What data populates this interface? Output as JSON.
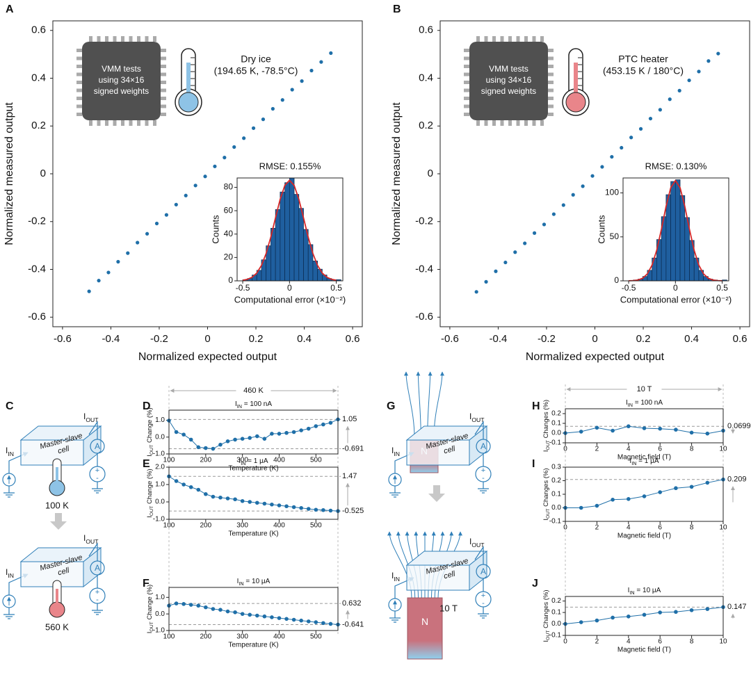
{
  "chart_data": [
    {
      "panel": "A",
      "type": "scatter",
      "xlabel": "Normalized expected output",
      "ylabel": "Normalized measured output",
      "x": [
        -0.49,
        -0.45,
        -0.41,
        -0.37,
        -0.33,
        -0.29,
        -0.25,
        -0.21,
        -0.17,
        -0.13,
        -0.09,
        -0.05,
        -0.01,
        0.03,
        0.07,
        0.11,
        0.15,
        0.19,
        0.23,
        0.27,
        0.31,
        0.35,
        0.39,
        0.43,
        0.47,
        0.51
      ],
      "values": [
        -0.492,
        -0.447,
        -0.413,
        -0.368,
        -0.332,
        -0.288,
        -0.251,
        -0.208,
        -0.172,
        -0.129,
        -0.091,
        -0.049,
        -0.011,
        0.031,
        0.068,
        0.112,
        0.149,
        0.191,
        0.228,
        0.272,
        0.309,
        0.352,
        0.388,
        0.432,
        0.468,
        0.505
      ],
      "color": "#1f6fa8",
      "xlim": [
        -0.64,
        0.64
      ],
      "ylim": [
        -0.64,
        0.64
      ],
      "xticks": [
        -0.6,
        -0.4,
        -0.2,
        0,
        0.2,
        0.4,
        0.6
      ],
      "yticks": [
        -0.6,
        -0.4,
        -0.2,
        0,
        0.2,
        0.4,
        0.6
      ],
      "chip_text": [
        "VMM tests",
        "using 34×16",
        "signed weights"
      ],
      "condition": [
        "Dry ice",
        "(194.65 K, -78.5°C)"
      ]
    },
    {
      "type": "histogram",
      "title": "RMSE: 0.155%",
      "xlabel": "Computational error (×10⁻²)",
      "ylabel": "Counts",
      "bins": [
        -0.5,
        -0.45,
        -0.4,
        -0.35,
        -0.3,
        -0.25,
        -0.2,
        -0.15,
        -0.1,
        -0.05,
        0,
        0.05,
        0.1,
        0.15,
        0.2,
        0.25,
        0.3,
        0.35,
        0.4,
        0.45,
        0.5,
        0.55
      ],
      "values": [
        1,
        2,
        5,
        9,
        18,
        30,
        45,
        61,
        76,
        84,
        88,
        74,
        62,
        44,
        31,
        17,
        10,
        5,
        2,
        1,
        1
      ],
      "color": "#1f5f9f",
      "fit": {
        "x": [
          -0.5,
          -0.45,
          -0.4,
          -0.35,
          -0.3,
          -0.25,
          -0.2,
          -0.15,
          -0.1,
          -0.05,
          0,
          0.05,
          0.1,
          0.15,
          0.2,
          0.25,
          0.3,
          0.35,
          0.4,
          0.45,
          0.5
        ],
        "values": [
          0.5,
          1.3,
          3.1,
          6.7,
          13.2,
          23.4,
          37.4,
          53.8,
          69.8,
          81.6,
          86,
          81.6,
          69.8,
          53.8,
          37.4,
          23.4,
          13.2,
          6.7,
          3.1,
          1.3,
          0.5
        ],
        "color": "#d62728"
      },
      "xlim": [
        -0.56,
        0.57
      ],
      "ylim": [
        0,
        88
      ],
      "xticks": [
        -0.5,
        0,
        0.5
      ],
      "yticks": [
        0,
        20,
        40,
        60,
        80
      ]
    },
    {
      "panel": "B",
      "type": "scatter",
      "xlabel": "Normalized expected output",
      "ylabel": "Normalized measured output",
      "x": [
        -0.49,
        -0.45,
        -0.41,
        -0.37,
        -0.33,
        -0.29,
        -0.25,
        -0.21,
        -0.17,
        -0.13,
        -0.09,
        -0.05,
        -0.01,
        0.03,
        0.07,
        0.11,
        0.15,
        0.19,
        0.23,
        0.27,
        0.31,
        0.35,
        0.39,
        0.43,
        0.47,
        0.51
      ],
      "values": [
        -0.494,
        -0.452,
        -0.408,
        -0.371,
        -0.328,
        -0.291,
        -0.248,
        -0.212,
        -0.169,
        -0.131,
        -0.088,
        -0.052,
        -0.009,
        0.029,
        0.071,
        0.109,
        0.152,
        0.188,
        0.231,
        0.268,
        0.312,
        0.348,
        0.391,
        0.428,
        0.472,
        0.503
      ],
      "color": "#1f6fa8",
      "xlim": [
        -0.64,
        0.64
      ],
      "ylim": [
        -0.64,
        0.64
      ],
      "xticks": [
        -0.6,
        -0.4,
        -0.2,
        0,
        0.2,
        0.4,
        0.6
      ],
      "yticks": [
        -0.6,
        -0.4,
        -0.2,
        0,
        0.2,
        0.4,
        0.6
      ],
      "chip_text": [
        "VMM tests",
        "using 34×16",
        "signed weights"
      ],
      "condition": [
        "PTC heater",
        "(453.15 K / 180°C)"
      ]
    },
    {
      "type": "histogram",
      "title": "RMSE: 0.130%",
      "xlabel": "Computational error (×10⁻²)",
      "ylabel": "Counts",
      "bins": [
        -0.5,
        -0.45,
        -0.4,
        -0.35,
        -0.3,
        -0.25,
        -0.2,
        -0.15,
        -0.1,
        -0.05,
        0,
        0.05,
        0.1,
        0.15,
        0.2,
        0.25,
        0.3,
        0.35,
        0.4,
        0.45,
        0.5,
        0.55
      ],
      "values": [
        0,
        1,
        2,
        5,
        12,
        26,
        47,
        73,
        98,
        113,
        115,
        97,
        72,
        46,
        26,
        12,
        5,
        2,
        1,
        0,
        1
      ],
      "color": "#1f5f9f",
      "fit": {
        "x": [
          -0.5,
          -0.45,
          -0.4,
          -0.35,
          -0.3,
          -0.25,
          -0.2,
          -0.15,
          -0.1,
          -0.05,
          0,
          0.05,
          0.1,
          0.15,
          0.2,
          0.25,
          0.3,
          0.35,
          0.4,
          0.45,
          0.5
        ],
        "values": [
          0.1,
          0.3,
          1.0,
          3.0,
          8.0,
          17.9,
          34.9,
          58.6,
          84.8,
          105.9,
          114,
          105.9,
          84.8,
          58.6,
          34.9,
          17.9,
          8.0,
          3.0,
          1.0,
          0.3,
          0.1
        ],
        "color": "#d62728"
      },
      "xlim": [
        -0.56,
        0.57
      ],
      "ylim": [
        0,
        117
      ],
      "xticks": [
        -0.5,
        0,
        0.5
      ],
      "yticks": [
        0,
        50,
        100
      ]
    },
    {
      "panel": "D",
      "type": "line",
      "title": [
        "I",
        "IN",
        " = 100 nA"
      ],
      "xlabel": "Temperature (K)",
      "ylabel": [
        "I",
        "OUT",
        " Change (%)"
      ],
      "span_label": "460 K",
      "x": [
        100,
        120,
        140,
        160,
        180,
        200,
        220,
        240,
        260,
        280,
        300,
        320,
        340,
        360,
        380,
        400,
        420,
        440,
        460,
        480,
        500,
        520,
        540,
        560
      ],
      "values": [
        0.98,
        0.3,
        0.15,
        -0.15,
        -0.6,
        -0.65,
        -0.691,
        -0.45,
        -0.25,
        -0.15,
        -0.1,
        -0.05,
        0.05,
        -0.1,
        0.2,
        0.2,
        0.25,
        0.3,
        0.4,
        0.5,
        0.65,
        0.75,
        0.85,
        1.05
      ],
      "color": "#1f6fa8",
      "xlim": [
        100,
        560
      ],
      "ylim": [
        -1.0,
        1.6
      ],
      "xticks": [
        100,
        200,
        300,
        400,
        500
      ],
      "yticks": [
        {
          "value": 1,
          "label": "1.0"
        },
        {
          "value": 0,
          "label": "0.0"
        },
        {
          "value": -1,
          "label": "-1.0"
        }
      ],
      "hlines": [
        1.05,
        -0.691
      ]
    },
    {
      "panel": "E",
      "type": "line",
      "title": [
        "I",
        "IN",
        " = 1 μA"
      ],
      "xlabel": "Temperature (K)",
      "ylabel": [
        "I",
        "OUT",
        " Change (%)"
      ],
      "x": [
        100,
        120,
        140,
        160,
        180,
        200,
        220,
        240,
        260,
        280,
        300,
        320,
        340,
        360,
        380,
        400,
        420,
        440,
        460,
        480,
        500,
        520,
        540,
        560
      ],
      "values": [
        1.47,
        1.2,
        1.0,
        0.85,
        0.7,
        0.45,
        0.3,
        0.25,
        0.2,
        0.15,
        0.05,
        0.0,
        -0.05,
        -0.1,
        -0.15,
        -0.2,
        -0.25,
        -0.3,
        -0.35,
        -0.4,
        -0.45,
        -0.47,
        -0.5,
        -0.525
      ],
      "color": "#1f6fa8",
      "xlim": [
        100,
        560
      ],
      "ylim": [
        -1.0,
        2.0
      ],
      "xticks": [
        100,
        200,
        300,
        400,
        500
      ],
      "yticks": [
        {
          "value": 2,
          "label": "2.0"
        },
        {
          "value": 1,
          "label": "1.0"
        },
        {
          "value": 0,
          "label": "0.0"
        },
        {
          "value": -1,
          "label": "-1.0"
        }
      ],
      "hlines": [
        1.47,
        -0.525
      ]
    },
    {
      "panel": "F",
      "type": "line",
      "title": [
        "I",
        "IN",
        " = 10 μA"
      ],
      "xlabel": "Temperature (K)",
      "ylabel": [
        "I",
        "OUT",
        " Change (%)"
      ],
      "x": [
        100,
        120,
        140,
        160,
        180,
        200,
        220,
        240,
        260,
        280,
        300,
        320,
        340,
        360,
        380,
        400,
        420,
        440,
        460,
        480,
        500,
        520,
        540,
        560
      ],
      "values": [
        0.5,
        0.632,
        0.6,
        0.55,
        0.5,
        0.4,
        0.3,
        0.25,
        0.15,
        0.1,
        0.0,
        -0.05,
        -0.1,
        -0.15,
        -0.2,
        -0.25,
        -0.3,
        -0.35,
        -0.4,
        -0.45,
        -0.5,
        -0.55,
        -0.6,
        -0.641
      ],
      "color": "#1f6fa8",
      "xlim": [
        100,
        560
      ],
      "ylim": [
        -1.0,
        1.6
      ],
      "xticks": [
        100,
        200,
        300,
        400,
        500
      ],
      "yticks": [
        {
          "value": 1,
          "label": "1.0"
        },
        {
          "value": 0,
          "label": "0.0"
        },
        {
          "value": -1,
          "label": "-1.0"
        }
      ],
      "hlines": [
        0.632,
        -0.641
      ]
    },
    {
      "panel": "H",
      "type": "line",
      "title": [
        "I",
        "IN",
        " = 100 nA"
      ],
      "xlabel": "Magnetic field (T)",
      "ylabel": [
        "I",
        "OUT",
        " Changes (%)"
      ],
      "span_label": "10 T",
      "x": [
        0,
        1,
        2,
        3,
        4,
        5,
        6,
        7,
        8,
        9,
        10
      ],
      "values": [
        0,
        0.015,
        0.055,
        0.025,
        0.0699,
        0.05,
        0.045,
        0.035,
        0.005,
        -0.005,
        0.025
      ],
      "color": "#1f6fa8",
      "xlim": [
        0,
        10
      ],
      "ylim": [
        -0.1,
        0.25
      ],
      "xticks": [
        0,
        2,
        4,
        6,
        8,
        10
      ],
      "yticks": [
        0.2,
        0.1,
        {
          "value": 0,
          "label": "0.0"
        },
        -0.1
      ],
      "hlines": [
        0.0699
      ]
    },
    {
      "panel": "I",
      "type": "line",
      "title": [
        "I",
        "IN",
        " = 1 μA"
      ],
      "xlabel": "Magnetic field (T)",
      "ylabel": [
        "I",
        "OUT",
        " Changes (%)"
      ],
      "x": [
        0,
        1,
        2,
        3,
        4,
        5,
        6,
        7,
        8,
        9,
        10
      ],
      "values": [
        0,
        0,
        0.015,
        0.06,
        0.065,
        0.085,
        0.115,
        0.145,
        0.155,
        0.185,
        0.209
      ],
      "color": "#1f6fa8",
      "xlim": [
        0,
        10
      ],
      "ylim": [
        -0.1,
        0.3
      ],
      "xticks": [
        0,
        2,
        4,
        6,
        8,
        10
      ],
      "yticks": [
        0.3,
        0.2,
        0.1,
        {
          "value": 0,
          "label": "0.0"
        },
        -0.1
      ],
      "hlines": [
        0.209
      ]
    },
    {
      "panel": "J",
      "type": "line",
      "title": [
        "I",
        "IN",
        " = 10 μA"
      ],
      "xlabel": "Magnetic field (T)",
      "ylabel": [
        "I",
        "OUT",
        " Changes (%)"
      ],
      "x": [
        0,
        1,
        2,
        3,
        4,
        5,
        6,
        7,
        8,
        9,
        10
      ],
      "values": [
        0,
        0.015,
        0.03,
        0.055,
        0.065,
        0.08,
        0.1,
        0.105,
        0.12,
        0.13,
        0.147
      ],
      "color": "#1f6fa8",
      "xlim": [
        0,
        10
      ],
      "ylim": [
        -0.1,
        0.24
      ],
      "xticks": [
        0,
        2,
        4,
        6,
        8,
        10
      ],
      "yticks": [
        0.2,
        0.1,
        {
          "value": 0,
          "label": "0.0"
        },
        -0.1
      ],
      "hlines": [
        0.147
      ]
    }
  ],
  "diagrams": {
    "C": {
      "panel": "C",
      "i_in": [
        "I",
        "IN"
      ],
      "i_out": [
        "I",
        "OUT"
      ],
      "cell": [
        "Master-slave",
        "cell"
      ],
      "ammeter": "A",
      "plus": "+",
      "minus": "-",
      "temperatures": [
        "100 K",
        "560 K"
      ]
    },
    "G": {
      "panel": "G",
      "i_in": [
        "I",
        "IN"
      ],
      "i_out": [
        "I",
        "OUT"
      ],
      "cell": [
        "Master-slave",
        "cell"
      ],
      "ammeter": "A",
      "plus": "+",
      "minus": "-",
      "magnet": "N",
      "field": "10 T"
    }
  }
}
